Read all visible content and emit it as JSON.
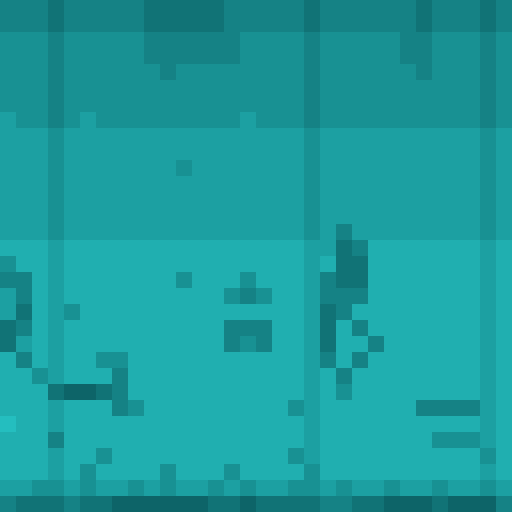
{
  "chart_data": {
    "type": "heatmap",
    "tick_labels": false,
    "color_range": [
      0,
      9
    ],
    "cells": [
      [
        4,
        4,
        4,
        3,
        4,
        4,
        4,
        4,
        4,
        3,
        3,
        3,
        3,
        3,
        4,
        4,
        4,
        4,
        4,
        3,
        4,
        4,
        4,
        4,
        4,
        4,
        3,
        4,
        4,
        4,
        3,
        4
      ],
      [
        4,
        4,
        4,
        3,
        4,
        4,
        4,
        4,
        4,
        3,
        3,
        3,
        3,
        3,
        4,
        4,
        4,
        4,
        4,
        3,
        4,
        4,
        4,
        4,
        4,
        4,
        3,
        4,
        4,
        4,
        3,
        4
      ],
      [
        5,
        5,
        5,
        4,
        5,
        5,
        5,
        5,
        5,
        4,
        4,
        4,
        4,
        4,
        4,
        5,
        5,
        5,
        5,
        4,
        5,
        5,
        5,
        5,
        5,
        4,
        4,
        5,
        5,
        5,
        4,
        5
      ],
      [
        5,
        5,
        5,
        4,
        5,
        5,
        5,
        5,
        5,
        4,
        4,
        4,
        4,
        4,
        4,
        5,
        5,
        5,
        5,
        4,
        5,
        5,
        5,
        5,
        5,
        4,
        4,
        5,
        5,
        5,
        4,
        5
      ],
      [
        5,
        5,
        5,
        4,
        5,
        5,
        5,
        5,
        5,
        5,
        4,
        5,
        5,
        5,
        5,
        5,
        5,
        5,
        5,
        4,
        5,
        5,
        5,
        5,
        5,
        5,
        4,
        5,
        5,
        5,
        4,
        5
      ],
      [
        5,
        5,
        5,
        4,
        5,
        5,
        5,
        5,
        5,
        5,
        5,
        5,
        5,
        5,
        5,
        5,
        5,
        5,
        5,
        4,
        5,
        5,
        5,
        5,
        5,
        5,
        5,
        5,
        5,
        5,
        4,
        5
      ],
      [
        5,
        5,
        5,
        4,
        5,
        5,
        5,
        5,
        5,
        5,
        5,
        5,
        5,
        5,
        5,
        5,
        5,
        5,
        5,
        4,
        5,
        5,
        5,
        5,
        5,
        5,
        5,
        5,
        5,
        5,
        4,
        5
      ],
      [
        6,
        5,
        5,
        4,
        5,
        6,
        5,
        5,
        5,
        5,
        5,
        5,
        5,
        5,
        5,
        6,
        5,
        5,
        5,
        4,
        5,
        5,
        5,
        5,
        5,
        5,
        5,
        5,
        5,
        5,
        4,
        5
      ],
      [
        6,
        6,
        6,
        5,
        6,
        6,
        6,
        6,
        6,
        6,
        6,
        6,
        6,
        6,
        6,
        6,
        6,
        6,
        6,
        5,
        6,
        6,
        6,
        6,
        6,
        6,
        6,
        6,
        6,
        6,
        5,
        6
      ],
      [
        6,
        6,
        6,
        5,
        6,
        6,
        6,
        6,
        6,
        6,
        6,
        6,
        6,
        6,
        6,
        6,
        6,
        6,
        6,
        5,
        6,
        6,
        6,
        6,
        6,
        6,
        6,
        6,
        6,
        6,
        5,
        6
      ],
      [
        6,
        6,
        6,
        5,
        6,
        6,
        6,
        6,
        6,
        6,
        6,
        5,
        6,
        6,
        6,
        6,
        6,
        6,
        6,
        5,
        6,
        6,
        6,
        6,
        6,
        6,
        6,
        6,
        6,
        6,
        5,
        6
      ],
      [
        6,
        6,
        6,
        5,
        6,
        6,
        6,
        6,
        6,
        6,
        6,
        6,
        6,
        6,
        6,
        6,
        6,
        6,
        6,
        5,
        6,
        6,
        6,
        6,
        6,
        6,
        6,
        6,
        6,
        6,
        5,
        6
      ],
      [
        6,
        6,
        6,
        5,
        6,
        6,
        6,
        6,
        6,
        6,
        6,
        6,
        6,
        6,
        6,
        6,
        6,
        6,
        6,
        5,
        6,
        6,
        6,
        6,
        6,
        6,
        6,
        6,
        6,
        6,
        5,
        6
      ],
      [
        6,
        6,
        6,
        5,
        6,
        6,
        6,
        6,
        6,
        6,
        6,
        6,
        6,
        6,
        6,
        6,
        6,
        6,
        6,
        5,
        6,
        6,
        6,
        6,
        6,
        6,
        6,
        6,
        6,
        6,
        5,
        6
      ],
      [
        6,
        6,
        6,
        5,
        6,
        6,
        6,
        6,
        6,
        6,
        6,
        6,
        6,
        6,
        6,
        6,
        6,
        6,
        6,
        5,
        6,
        4,
        6,
        6,
        6,
        6,
        6,
        6,
        6,
        6,
        5,
        6
      ],
      [
        7,
        7,
        7,
        6,
        7,
        7,
        7,
        7,
        7,
        7,
        7,
        7,
        7,
        7,
        7,
        7,
        7,
        7,
        7,
        6,
        6,
        3,
        4,
        7,
        7,
        7,
        7,
        7,
        7,
        7,
        6,
        7
      ],
      [
        5,
        7,
        7,
        6,
        7,
        7,
        7,
        7,
        7,
        7,
        7,
        7,
        7,
        7,
        7,
        7,
        7,
        7,
        7,
        6,
        7,
        3,
        3,
        7,
        7,
        7,
        7,
        7,
        7,
        7,
        6,
        7
      ],
      [
        4,
        4,
        7,
        6,
        7,
        7,
        7,
        7,
        7,
        7,
        7,
        5,
        7,
        7,
        7,
        5,
        7,
        7,
        7,
        6,
        4,
        3,
        3,
        7,
        7,
        7,
        7,
        7,
        7,
        7,
        6,
        7
      ],
      [
        6,
        4,
        7,
        6,
        7,
        7,
        7,
        7,
        7,
        7,
        7,
        7,
        7,
        7,
        5,
        4,
        5,
        7,
        7,
        6,
        4,
        4,
        4,
        7,
        7,
        7,
        7,
        7,
        7,
        7,
        6,
        7
      ],
      [
        6,
        3,
        7,
        6,
        5,
        7,
        7,
        7,
        7,
        7,
        7,
        7,
        7,
        7,
        7,
        7,
        7,
        7,
        7,
        6,
        3,
        4,
        7,
        7,
        7,
        7,
        7,
        7,
        7,
        7,
        6,
        7
      ],
      [
        3,
        4,
        7,
        6,
        7,
        7,
        7,
        7,
        7,
        7,
        7,
        7,
        7,
        7,
        4,
        4,
        4,
        7,
        7,
        6,
        3,
        7,
        4,
        7,
        7,
        7,
        7,
        7,
        7,
        7,
        6,
        7
      ],
      [
        3,
        6,
        7,
        6,
        7,
        7,
        7,
        7,
        7,
        7,
        7,
        7,
        7,
        7,
        4,
        5,
        4,
        7,
        7,
        6,
        3,
        7,
        7,
        4,
        7,
        7,
        7,
        7,
        7,
        7,
        6,
        7
      ],
      [
        7,
        4,
        7,
        6,
        7,
        7,
        5,
        5,
        7,
        7,
        7,
        7,
        7,
        7,
        7,
        7,
        7,
        7,
        7,
        6,
        4,
        7,
        4,
        7,
        7,
        7,
        7,
        7,
        7,
        7,
        6,
        7
      ],
      [
        7,
        7,
        5,
        6,
        7,
        7,
        7,
        4,
        7,
        7,
        7,
        7,
        7,
        7,
        7,
        7,
        7,
        7,
        7,
        6,
        7,
        4,
        7,
        7,
        7,
        7,
        7,
        7,
        7,
        7,
        6,
        7
      ],
      [
        7,
        7,
        7,
        3,
        2,
        2,
        3,
        4,
        7,
        7,
        7,
        7,
        7,
        7,
        7,
        7,
        7,
        7,
        7,
        6,
        7,
        5,
        7,
        7,
        7,
        7,
        7,
        7,
        7,
        7,
        6,
        7
      ],
      [
        7,
        7,
        7,
        6,
        7,
        7,
        7,
        4,
        5,
        7,
        7,
        7,
        7,
        7,
        7,
        7,
        7,
        7,
        5,
        6,
        7,
        7,
        7,
        7,
        7,
        7,
        4,
        4,
        4,
        4,
        6,
        7
      ],
      [
        8,
        7,
        7,
        6,
        7,
        7,
        7,
        7,
        7,
        7,
        7,
        7,
        7,
        7,
        7,
        7,
        7,
        7,
        7,
        6,
        7,
        7,
        7,
        7,
        7,
        7,
        7,
        7,
        7,
        7,
        6,
        7
      ],
      [
        7,
        7,
        7,
        4,
        7,
        7,
        7,
        7,
        7,
        7,
        7,
        7,
        7,
        7,
        7,
        7,
        7,
        7,
        7,
        6,
        7,
        7,
        7,
        7,
        7,
        7,
        7,
        5,
        5,
        5,
        6,
        7
      ],
      [
        7,
        7,
        7,
        6,
        7,
        7,
        5,
        7,
        7,
        7,
        7,
        7,
        7,
        7,
        7,
        7,
        7,
        7,
        5,
        6,
        7,
        7,
        7,
        7,
        7,
        7,
        7,
        7,
        7,
        7,
        5,
        7
      ],
      [
        7,
        7,
        7,
        6,
        7,
        5,
        7,
        7,
        7,
        7,
        5,
        7,
        7,
        7,
        5,
        7,
        7,
        7,
        7,
        5,
        7,
        7,
        7,
        7,
        7,
        7,
        7,
        7,
        7,
        7,
        6,
        7
      ],
      [
        6,
        6,
        5,
        5,
        6,
        5,
        6,
        6,
        5,
        6,
        5,
        6,
        6,
        5,
        6,
        5,
        6,
        6,
        5,
        5,
        6,
        5,
        6,
        6,
        5,
        6,
        6,
        5,
        6,
        6,
        5,
        6
      ],
      [
        4,
        3,
        3,
        3,
        4,
        3,
        3,
        2,
        2,
        2,
        2,
        2,
        2,
        3,
        3,
        2,
        3,
        3,
        3,
        3,
        4,
        4,
        3,
        3,
        2,
        2,
        2,
        3,
        2,
        2,
        2,
        4
      ]
    ]
  }
}
